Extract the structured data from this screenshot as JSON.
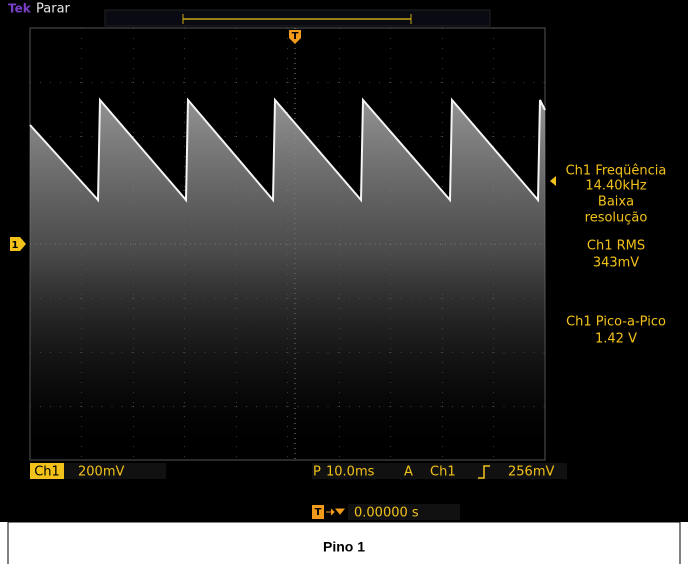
{
  "header": {
    "brand": "Tek",
    "status": "Parar",
    "trigger_marker": "T"
  },
  "channel_marker": "1",
  "measurements": [
    {
      "lines": [
        "Ch1 Freqüência",
        "14.40kHz",
        "Baixa",
        "resolução"
      ]
    },
    {
      "lines": [
        "Ch1 RMS",
        "343mV"
      ]
    },
    {
      "lines": [
        "Ch1 Pico-a-Pico",
        "1.42 V"
      ]
    }
  ],
  "status_bar": {
    "channel": "Ch1",
    "scale": "200mV",
    "period_label": "P",
    "period": "10.0ms",
    "trigger_mode": "A",
    "trigger_channel": "Ch1",
    "trigger_level": "256mV"
  },
  "trigger_position": {
    "marker": "T",
    "value": "0.00000 s"
  },
  "caption": "Pino 1"
}
